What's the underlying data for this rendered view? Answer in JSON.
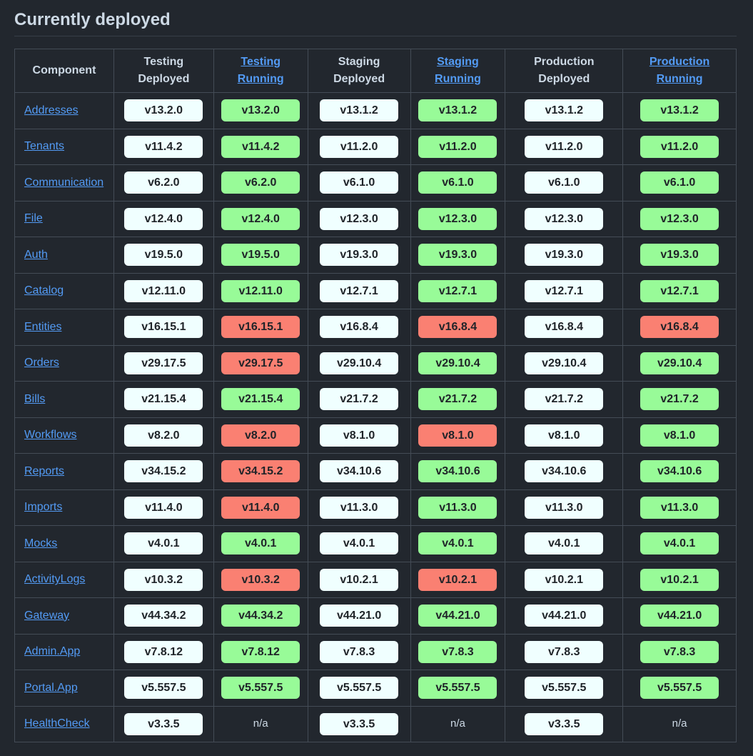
{
  "title": "Currently deployed",
  "table": {
    "header": [
      {
        "text": "Component"
      },
      {
        "text": "Testing Deployed"
      },
      {
        "text": "Testing Running",
        "link": true
      },
      {
        "text": "Staging Deployed"
      },
      {
        "text": "Staging Running",
        "link": true
      },
      {
        "text": "Production Deployed"
      },
      {
        "text": "Production Running",
        "link": true
      }
    ],
    "rows": [
      {
        "name": "Addresses",
        "cells": [
          {
            "text": "v13.2.0",
            "color": "#f0ffff"
          },
          {
            "text": "v13.2.0",
            "color": "#98fb98"
          },
          {
            "text": "v13.1.2",
            "color": "#f0ffff"
          },
          {
            "text": "v13.1.2",
            "color": "#98fb98"
          },
          {
            "text": "v13.1.2",
            "color": "#f0ffff"
          },
          {
            "text": "v13.1.2",
            "color": "#98fb98"
          }
        ]
      },
      {
        "name": "Tenants",
        "cells": [
          {
            "text": "v11.4.2",
            "color": "#f0ffff"
          },
          {
            "text": "v11.4.2",
            "color": "#98fb98"
          },
          {
            "text": "v11.2.0",
            "color": "#f0ffff"
          },
          {
            "text": "v11.2.0",
            "color": "#98fb98"
          },
          {
            "text": "v11.2.0",
            "color": "#f0ffff"
          },
          {
            "text": "v11.2.0",
            "color": "#98fb98"
          }
        ]
      },
      {
        "name": "Communication",
        "cells": [
          {
            "text": "v6.2.0",
            "color": "#f0ffff"
          },
          {
            "text": "v6.2.0",
            "color": "#98fb98"
          },
          {
            "text": "v6.1.0",
            "color": "#f0ffff"
          },
          {
            "text": "v6.1.0",
            "color": "#98fb98"
          },
          {
            "text": "v6.1.0",
            "color": "#f0ffff"
          },
          {
            "text": "v6.1.0",
            "color": "#98fb98"
          }
        ]
      },
      {
        "name": "File",
        "cells": [
          {
            "text": "v12.4.0",
            "color": "#f0ffff"
          },
          {
            "text": "v12.4.0",
            "color": "#98fb98"
          },
          {
            "text": "v12.3.0",
            "color": "#f0ffff"
          },
          {
            "text": "v12.3.0",
            "color": "#98fb98"
          },
          {
            "text": "v12.3.0",
            "color": "#f0ffff"
          },
          {
            "text": "v12.3.0",
            "color": "#98fb98"
          }
        ]
      },
      {
        "name": "Auth",
        "cells": [
          {
            "text": "v19.5.0",
            "color": "#f0ffff"
          },
          {
            "text": "v19.5.0",
            "color": "#98fb98"
          },
          {
            "text": "v19.3.0",
            "color": "#f0ffff"
          },
          {
            "text": "v19.3.0",
            "color": "#98fb98"
          },
          {
            "text": "v19.3.0",
            "color": "#f0ffff"
          },
          {
            "text": "v19.3.0",
            "color": "#98fb98"
          }
        ]
      },
      {
        "name": "Catalog",
        "cells": [
          {
            "text": "v12.11.0",
            "color": "#f0ffff"
          },
          {
            "text": "v12.11.0",
            "color": "#98fb98"
          },
          {
            "text": "v12.7.1",
            "color": "#f0ffff"
          },
          {
            "text": "v12.7.1",
            "color": "#98fb98"
          },
          {
            "text": "v12.7.1",
            "color": "#f0ffff"
          },
          {
            "text": "v12.7.1",
            "color": "#98fb98"
          }
        ]
      },
      {
        "name": "Entities",
        "cells": [
          {
            "text": "v16.15.1",
            "color": "#f0ffff"
          },
          {
            "text": "v16.15.1",
            "color": "#fa8072"
          },
          {
            "text": "v16.8.4",
            "color": "#f0ffff"
          },
          {
            "text": "v16.8.4",
            "color": "#fa8072"
          },
          {
            "text": "v16.8.4",
            "color": "#f0ffff"
          },
          {
            "text": "v16.8.4",
            "color": "#fa8072"
          }
        ]
      },
      {
        "name": "Orders",
        "cells": [
          {
            "text": "v29.17.5",
            "color": "#f0ffff"
          },
          {
            "text": "v29.17.5",
            "color": "#fa8072"
          },
          {
            "text": "v29.10.4",
            "color": "#f0ffff"
          },
          {
            "text": "v29.10.4",
            "color": "#98fb98"
          },
          {
            "text": "v29.10.4",
            "color": "#f0ffff"
          },
          {
            "text": "v29.10.4",
            "color": "#98fb98"
          }
        ]
      },
      {
        "name": "Bills",
        "cells": [
          {
            "text": "v21.15.4",
            "color": "#f0ffff"
          },
          {
            "text": "v21.15.4",
            "color": "#98fb98"
          },
          {
            "text": "v21.7.2",
            "color": "#f0ffff"
          },
          {
            "text": "v21.7.2",
            "color": "#98fb98"
          },
          {
            "text": "v21.7.2",
            "color": "#f0ffff"
          },
          {
            "text": "v21.7.2",
            "color": "#98fb98"
          }
        ]
      },
      {
        "name": "Workflows",
        "cells": [
          {
            "text": "v8.2.0",
            "color": "#f0ffff"
          },
          {
            "text": "v8.2.0",
            "color": "#fa8072"
          },
          {
            "text": "v8.1.0",
            "color": "#f0ffff"
          },
          {
            "text": "v8.1.0",
            "color": "#fa8072"
          },
          {
            "text": "v8.1.0",
            "color": "#f0ffff"
          },
          {
            "text": "v8.1.0",
            "color": "#98fb98"
          }
        ]
      },
      {
        "name": "Reports",
        "cells": [
          {
            "text": "v34.15.2",
            "color": "#f0ffff"
          },
          {
            "text": "v34.15.2",
            "color": "#fa8072"
          },
          {
            "text": "v34.10.6",
            "color": "#f0ffff"
          },
          {
            "text": "v34.10.6",
            "color": "#98fb98"
          },
          {
            "text": "v34.10.6",
            "color": "#f0ffff"
          },
          {
            "text": "v34.10.6",
            "color": "#98fb98"
          }
        ]
      },
      {
        "name": "Imports",
        "cells": [
          {
            "text": "v11.4.0",
            "color": "#f0ffff"
          },
          {
            "text": "v11.4.0",
            "color": "#fa8072"
          },
          {
            "text": "v11.3.0",
            "color": "#f0ffff"
          },
          {
            "text": "v11.3.0",
            "color": "#98fb98"
          },
          {
            "text": "v11.3.0",
            "color": "#f0ffff"
          },
          {
            "text": "v11.3.0",
            "color": "#98fb98"
          }
        ]
      },
      {
        "name": "Mocks",
        "cells": [
          {
            "text": "v4.0.1",
            "color": "#f0ffff"
          },
          {
            "text": "v4.0.1",
            "color": "#98fb98"
          },
          {
            "text": "v4.0.1",
            "color": "#f0ffff"
          },
          {
            "text": "v4.0.1",
            "color": "#98fb98"
          },
          {
            "text": "v4.0.1",
            "color": "#f0ffff"
          },
          {
            "text": "v4.0.1",
            "color": "#98fb98"
          }
        ]
      },
      {
        "name": "ActivityLogs",
        "cells": [
          {
            "text": "v10.3.2",
            "color": "#f0ffff"
          },
          {
            "text": "v10.3.2",
            "color": "#fa8072"
          },
          {
            "text": "v10.2.1",
            "color": "#f0ffff"
          },
          {
            "text": "v10.2.1",
            "color": "#fa8072"
          },
          {
            "text": "v10.2.1",
            "color": "#f0ffff"
          },
          {
            "text": "v10.2.1",
            "color": "#98fb98"
          }
        ]
      },
      {
        "name": "Gateway",
        "cells": [
          {
            "text": "v44.34.2",
            "color": "#f0ffff"
          },
          {
            "text": "v44.34.2",
            "color": "#98fb98"
          },
          {
            "text": "v44.21.0",
            "color": "#f0ffff"
          },
          {
            "text": "v44.21.0",
            "color": "#98fb98"
          },
          {
            "text": "v44.21.0",
            "color": "#f0ffff"
          },
          {
            "text": "v44.21.0",
            "color": "#98fb98"
          }
        ]
      },
      {
        "name": "Admin.App",
        "cells": [
          {
            "text": "v7.8.12",
            "color": "#f0ffff"
          },
          {
            "text": "v7.8.12",
            "color": "#98fb98"
          },
          {
            "text": "v7.8.3",
            "color": "#f0ffff"
          },
          {
            "text": "v7.8.3",
            "color": "#98fb98"
          },
          {
            "text": "v7.8.3",
            "color": "#f0ffff"
          },
          {
            "text": "v7.8.3",
            "color": "#98fb98"
          }
        ]
      },
      {
        "name": "Portal.App",
        "cells": [
          {
            "text": "v5.557.5",
            "color": "#f0ffff"
          },
          {
            "text": "v5.557.5",
            "color": "#98fb98"
          },
          {
            "text": "v5.557.5",
            "color": "#f0ffff"
          },
          {
            "text": "v5.557.5",
            "color": "#98fb98"
          },
          {
            "text": "v5.557.5",
            "color": "#f0ffff"
          },
          {
            "text": "v5.557.5",
            "color": "#98fb98"
          }
        ]
      },
      {
        "name": "HealthCheck",
        "cells": [
          {
            "text": "v3.3.5",
            "color": "#f0ffff"
          },
          {
            "text": "n/a"
          },
          {
            "text": "v3.3.5",
            "color": "#f0ffff"
          },
          {
            "text": "n/a"
          },
          {
            "text": "v3.3.5",
            "color": "#f0ffff"
          },
          {
            "text": "n/a"
          }
        ]
      }
    ]
  }
}
